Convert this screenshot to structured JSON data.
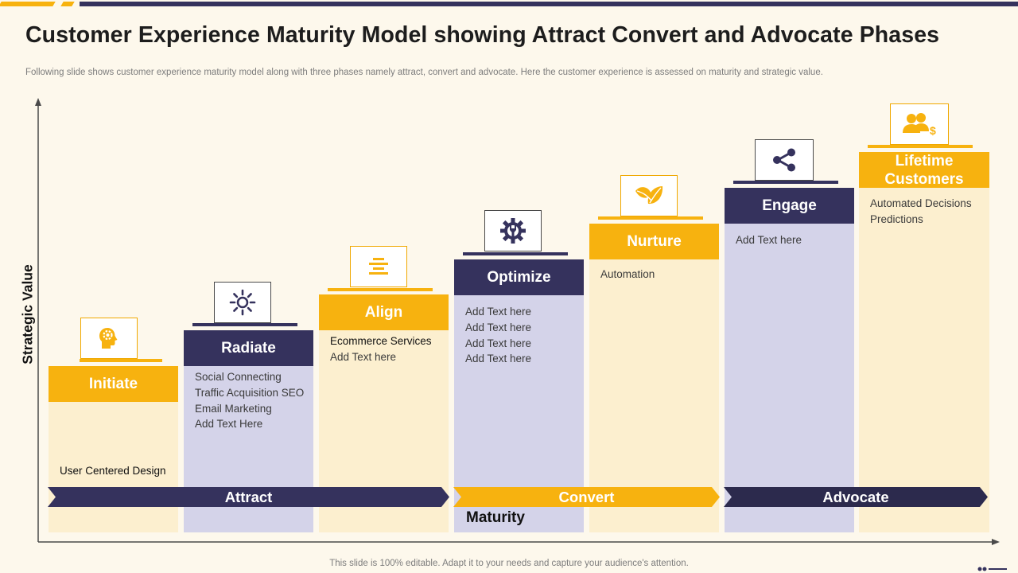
{
  "title": "Customer Experience Maturity Model showing Attract Convert and Advocate Phases",
  "subtitle": "Following slide shows customer experience maturity model along with three phases namely attract, convert and advocate. Here the customer experience is assessed on maturity and strategic value.",
  "footer": "This slide is 100% editable. Adapt it to your needs and capture your audience's attention.",
  "axes": {
    "x_label": "Maturity",
    "y_label": "Strategic Value"
  },
  "colors": {
    "yellow": "#f7b20f",
    "navy": "#35325d",
    "cream": "#fcefcf",
    "lavender": "#d4d3e9",
    "background": "#fdf8ec"
  },
  "stages": [
    {
      "label": "Initiate",
      "icon": "head-gear-icon",
      "items": [
        "User Centered Design"
      ]
    },
    {
      "label": "Radiate",
      "icon": "sun-icon",
      "items": [
        "Social Connecting",
        "Traffic  Acquisition SEO",
        "Email Marketing",
        "Add Text Here"
      ]
    },
    {
      "label": "Align",
      "icon": "align-lines-icon",
      "items": [
        "Ecommerce Services",
        "Add Text here"
      ]
    },
    {
      "label": "Optimize",
      "icon": "gear-wrench-icon",
      "items": [
        "Add Text here",
        "Add Text here",
        "Add Text here",
        "Add Text here"
      ]
    },
    {
      "label": "Nurture",
      "icon": "leaf-icon",
      "items": [
        "Automation"
      ]
    },
    {
      "label": "Engage",
      "icon": "share-icon",
      "items": [
        "Add Text here"
      ]
    },
    {
      "label": "Lifetime Customers",
      "icon": "customers-dollar-icon",
      "items": [
        "Automated Decisions",
        "Predictions"
      ]
    }
  ],
  "phases": [
    {
      "label": "Attract"
    },
    {
      "label": "Convert"
    },
    {
      "label": "Advocate"
    }
  ]
}
